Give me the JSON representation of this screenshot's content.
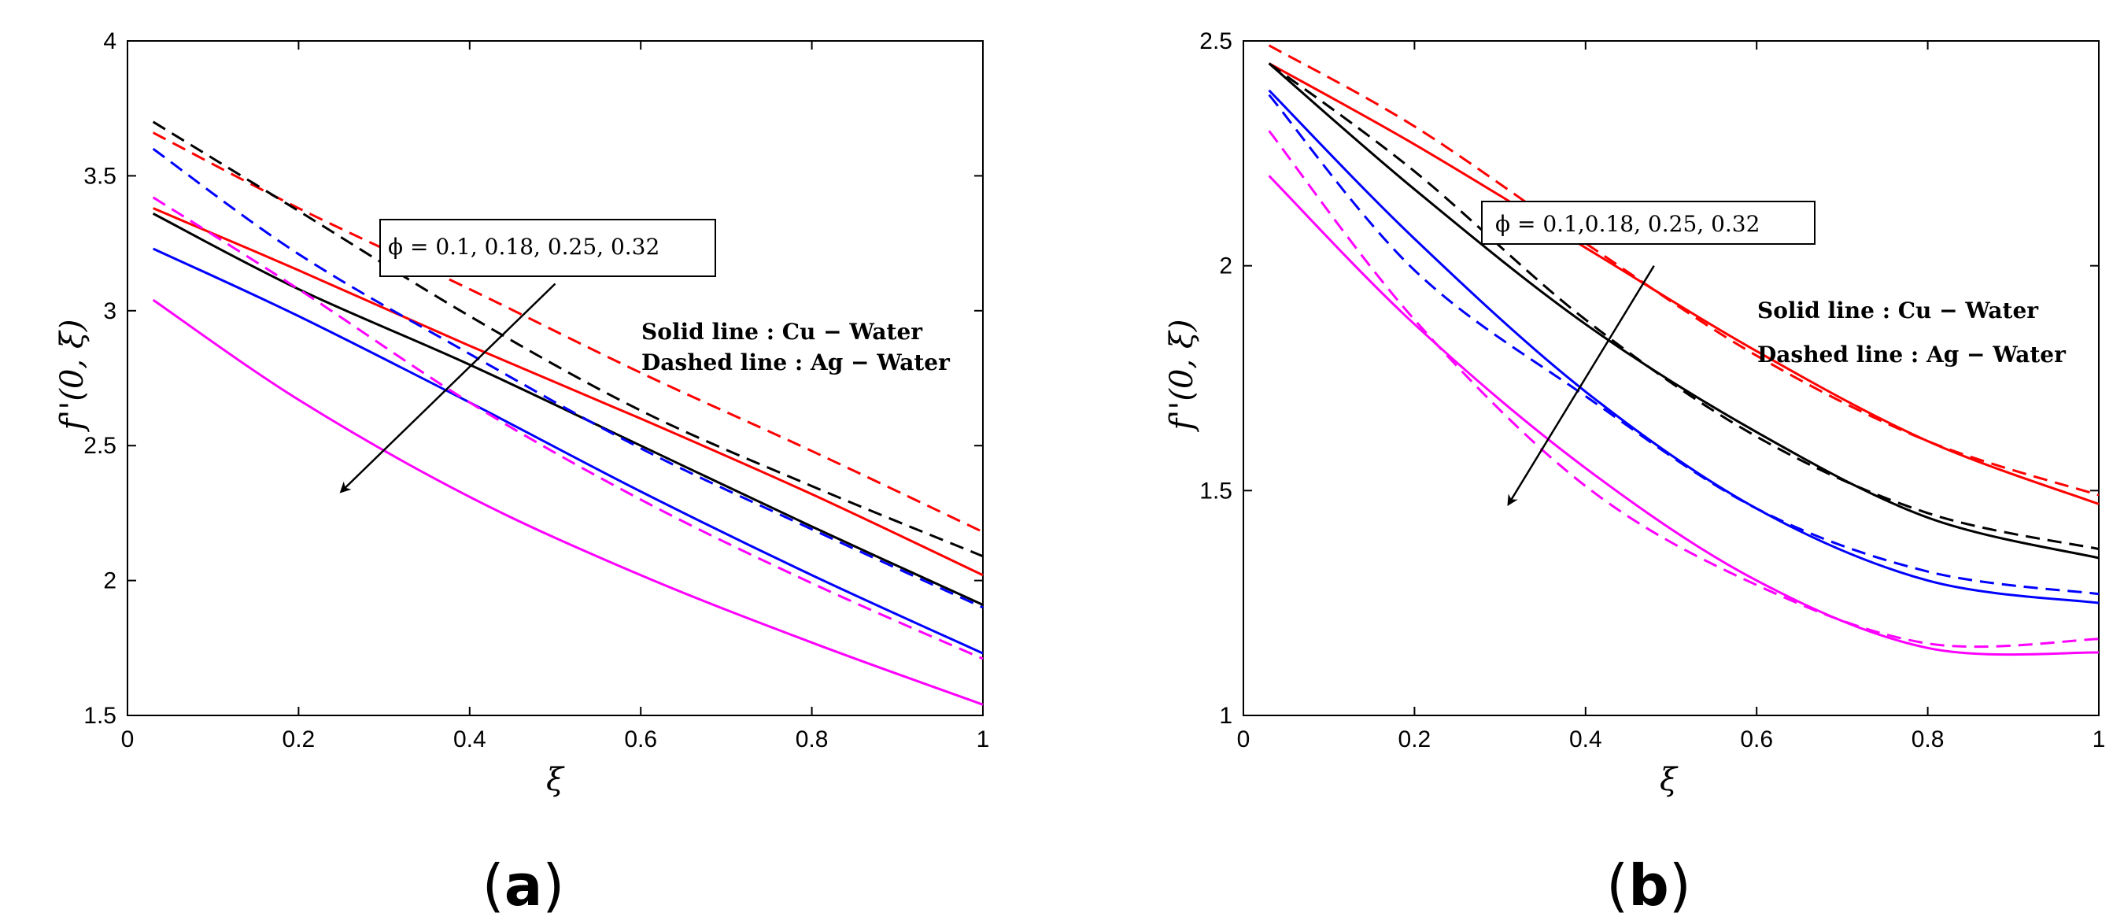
{
  "chart_data": [
    {
      "panel": "a",
      "type": "line",
      "panel_label": "(a)",
      "panel_label_parts": {
        "open": "(",
        "letter": "a",
        "close": ")"
      },
      "xlabel": "ξ",
      "ylabel": "f''(0, ξ)",
      "xlim": [
        0,
        1
      ],
      "ylim": [
        1.5,
        4
      ],
      "xticks": [
        0,
        0.2,
        0.4,
        0.6,
        0.8,
        1
      ],
      "xtick_labels": [
        "0",
        "0.2",
        "0.4",
        "0.6",
        "0.8",
        "1"
      ],
      "yticks": [
        1.5,
        2,
        2.5,
        3,
        3.5,
        4
      ],
      "ytick_labels": [
        "1.5",
        "2",
        "2.5",
        "3",
        "3.5",
        "4"
      ],
      "annotation": "ϕ = 0.1, 0.18, 0.25, 0.32",
      "legend_lines": [
        "Solid line : Cu − Water",
        "Dashed line : Ag − Water"
      ],
      "arrow": {
        "from": [
          0.5,
          3.1
        ],
        "to": [
          0.25,
          2.33
        ]
      },
      "series": [
        {
          "name": "Cu-Water φ=0.1",
          "style": "solid",
          "color": "#ff0000",
          "x": [
            0.03,
            0.2,
            0.4,
            0.6,
            0.8,
            1.0
          ],
          "y": [
            3.38,
            3.15,
            2.87,
            2.6,
            2.32,
            2.02
          ]
        },
        {
          "name": "Cu-Water φ=0.18",
          "style": "solid",
          "color": "#000000",
          "x": [
            0.03,
            0.2,
            0.4,
            0.6,
            0.8,
            1.0
          ],
          "y": [
            3.36,
            3.08,
            2.8,
            2.5,
            2.2,
            1.91
          ]
        },
        {
          "name": "Cu-Water φ=0.25",
          "style": "solid",
          "color": "#0000ff",
          "x": [
            0.03,
            0.2,
            0.4,
            0.6,
            0.8,
            1.0
          ],
          "y": [
            3.23,
            2.98,
            2.66,
            2.33,
            2.02,
            1.73
          ]
        },
        {
          "name": "Cu-Water φ=0.32",
          "style": "solid",
          "color": "#ff00ff",
          "x": [
            0.03,
            0.2,
            0.4,
            0.6,
            0.8,
            1.0
          ],
          "y": [
            3.04,
            2.67,
            2.31,
            2.02,
            1.77,
            1.54
          ]
        },
        {
          "name": "Ag-Water φ=0.1",
          "style": "dashed",
          "color": "#ff0000",
          "x": [
            0.03,
            0.2,
            0.4,
            0.6,
            0.8,
            1.0
          ],
          "y": [
            3.66,
            3.38,
            3.08,
            2.77,
            2.48,
            2.18
          ]
        },
        {
          "name": "Ag-Water φ=0.18",
          "style": "dashed",
          "color": "#000000",
          "x": [
            0.03,
            0.2,
            0.4,
            0.6,
            0.8,
            1.0
          ],
          "y": [
            3.7,
            3.37,
            2.98,
            2.63,
            2.35,
            2.09
          ]
        },
        {
          "name": "Ag-Water φ=0.25",
          "style": "dashed",
          "color": "#0000ff",
          "x": [
            0.03,
            0.2,
            0.4,
            0.6,
            0.8,
            1.0
          ],
          "y": [
            3.6,
            3.21,
            2.84,
            2.49,
            2.19,
            1.9
          ]
        },
        {
          "name": "Ag-Water φ=0.32",
          "style": "dashed",
          "color": "#ff00ff",
          "x": [
            0.03,
            0.2,
            0.4,
            0.6,
            0.8,
            1.0
          ],
          "y": [
            3.42,
            3.08,
            2.66,
            2.3,
            1.99,
            1.71
          ]
        }
      ]
    },
    {
      "panel": "b",
      "type": "line",
      "panel_label": "(b)",
      "panel_label_parts": {
        "open": "(",
        "letter": "b",
        "close": ")"
      },
      "xlabel": "ξ",
      "ylabel": "f''(0, ξ)",
      "xlim": [
        0,
        1
      ],
      "ylim": [
        1,
        2.5
      ],
      "xticks": [
        0,
        0.2,
        0.4,
        0.6,
        0.8,
        1
      ],
      "xtick_labels": [
        "0",
        "0.2",
        "0.4",
        "0.6",
        "0.8",
        "1"
      ],
      "yticks": [
        1,
        1.5,
        2,
        2.5
      ],
      "ytick_labels": [
        "1",
        "1.5",
        "2",
        "2.5"
      ],
      "annotation": "ϕ = 0.1,0.18, 0.25, 0.32",
      "legend_lines": [
        "Solid line : Cu − Water",
        "Dashed line : Ag − Water"
      ],
      "arrow": {
        "from": [
          0.48,
          2.0
        ],
        "to": [
          0.31,
          1.47
        ]
      },
      "series": [
        {
          "name": "Cu-Water φ=0.1",
          "style": "solid",
          "color": "#ff0000",
          "x": [
            0.03,
            0.2,
            0.4,
            0.6,
            0.8,
            1.0
          ],
          "y": [
            2.45,
            2.27,
            2.04,
            1.81,
            1.61,
            1.47
          ]
        },
        {
          "name": "Cu-Water φ=0.18",
          "style": "solid",
          "color": "#000000",
          "x": [
            0.03,
            0.2,
            0.4,
            0.6,
            0.8,
            1.0
          ],
          "y": [
            2.45,
            2.17,
            1.87,
            1.63,
            1.44,
            1.35
          ]
        },
        {
          "name": "Cu-Water φ=0.25",
          "style": "solid",
          "color": "#0000ff",
          "x": [
            0.03,
            0.2,
            0.4,
            0.6,
            0.8,
            1.0
          ],
          "y": [
            2.39,
            2.06,
            1.72,
            1.46,
            1.3,
            1.25
          ]
        },
        {
          "name": "Cu-Water φ=0.32",
          "style": "solid",
          "color": "#ff00ff",
          "x": [
            0.03,
            0.2,
            0.4,
            0.6,
            0.8,
            1.0
          ],
          "y": [
            2.2,
            1.87,
            1.55,
            1.3,
            1.15,
            1.14
          ]
        },
        {
          "name": "Ag-Water φ=0.1",
          "style": "dashed",
          "color": "#ff0000",
          "x": [
            0.03,
            0.2,
            0.4,
            0.6,
            0.8,
            1.0
          ],
          "y": [
            2.49,
            2.31,
            2.05,
            1.8,
            1.61,
            1.49
          ]
        },
        {
          "name": "Ag-Water φ=0.18",
          "style": "dashed",
          "color": "#000000",
          "x": [
            0.03,
            0.2,
            0.4,
            0.6,
            0.8,
            1.0
          ],
          "y": [
            2.45,
            2.21,
            1.88,
            1.62,
            1.45,
            1.37
          ]
        },
        {
          "name": "Ag-Water φ=0.25",
          "style": "dashed",
          "color": "#0000ff",
          "x": [
            0.03,
            0.2,
            0.4,
            0.6,
            0.8,
            1.0
          ],
          "y": [
            2.38,
            1.99,
            1.71,
            1.46,
            1.32,
            1.27
          ]
        },
        {
          "name": "Ag-Water φ=0.32",
          "style": "dashed",
          "color": "#ff00ff",
          "x": [
            0.03,
            0.2,
            0.4,
            0.6,
            0.8,
            1.0
          ],
          "y": [
            2.3,
            1.88,
            1.51,
            1.29,
            1.16,
            1.17
          ]
        }
      ]
    }
  ]
}
